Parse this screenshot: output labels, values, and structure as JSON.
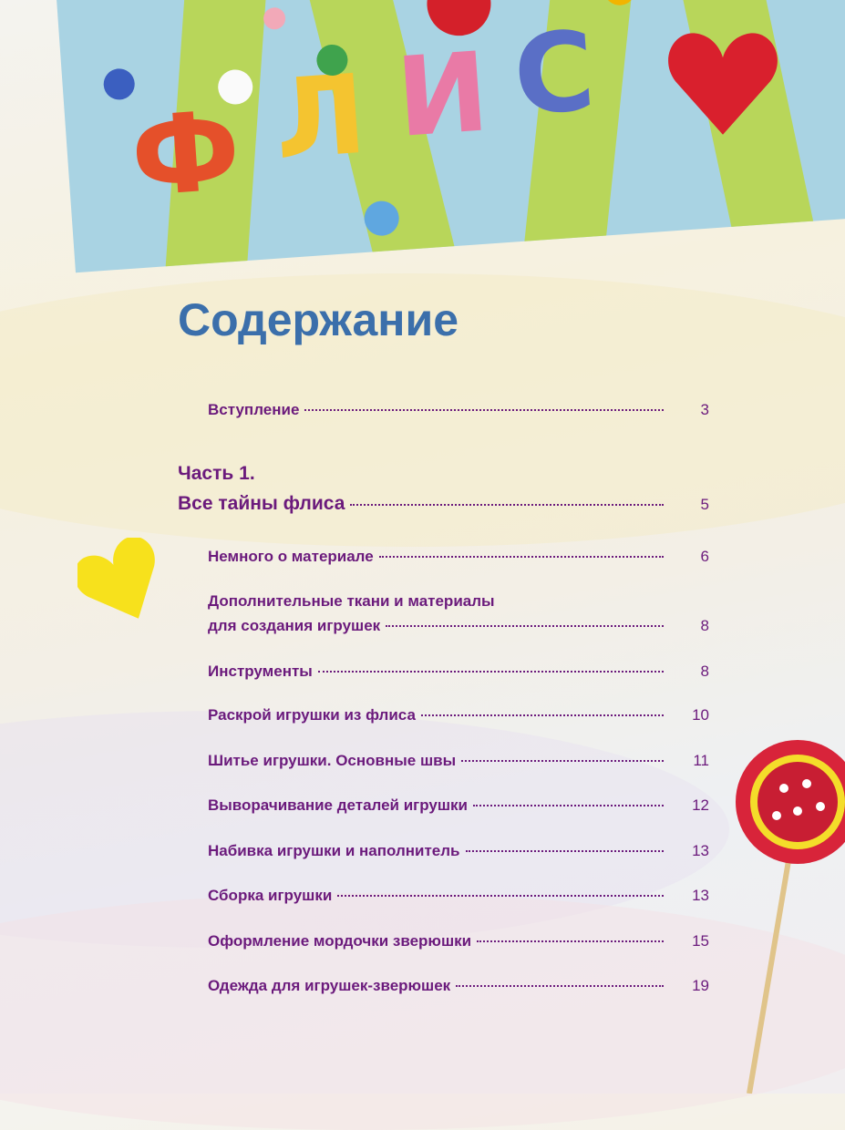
{
  "banner": {
    "letters": [
      "Ф",
      "Л",
      "И",
      "С"
    ],
    "colors": [
      "#e5502a",
      "#f4c430",
      "#e97aa6",
      "#5a6fc6"
    ]
  },
  "title": "Содержание",
  "colors": {
    "title": "#3b6fab",
    "text": "#6b1a7c"
  },
  "toc": {
    "intro": {
      "label": "Вступление",
      "page": "3"
    },
    "part1": {
      "heading": "Часть 1.",
      "label": "Все тайны флиса",
      "page": "5"
    },
    "items": [
      {
        "label": "Немного о материале",
        "page": "6"
      },
      {
        "label_line1": "Дополнительные ткани и материалы",
        "label": "для создания игрушек",
        "page": "8"
      },
      {
        "label": "Инструменты",
        "page": "8"
      },
      {
        "label": "Раскрой игрушки из флиса",
        "page": "10"
      },
      {
        "label": "Шитье игрушки. Основные швы",
        "page": "11"
      },
      {
        "label": "Выворачивание деталей игрушки",
        "page": "12"
      },
      {
        "label": "Набивка игрушки и наполнитель",
        "page": "13"
      },
      {
        "label": "Сборка игрушки",
        "page": "13"
      },
      {
        "label": "Оформление мордочки зверюшки",
        "page": "15"
      },
      {
        "label": "Одежда для игрушек-зверюшек",
        "page": "19"
      }
    ]
  }
}
